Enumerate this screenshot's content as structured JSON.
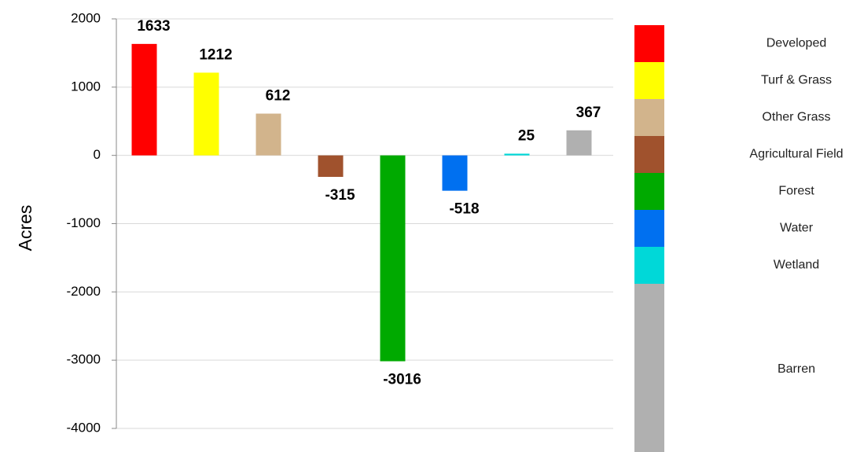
{
  "chart_data": {
    "type": "bar",
    "y_label": "Acres",
    "categories": [
      "Developed",
      "Turf & Grass",
      "Other Grass",
      "Agricultural Field",
      "Forest",
      "Water",
      "Wetland",
      "Barren"
    ],
    "values": [
      1633,
      1212,
      612,
      -315,
      -3016,
      -518,
      25,
      367
    ],
    "colors": [
      "#ff0000",
      "#ffff00",
      "#d2b48c",
      "#a0522d",
      "#00aa00",
      "#0070f0",
      "#00d8d8",
      "#b0b0b0"
    ],
    "ylim": [
      -4000,
      2000
    ],
    "yticks": [
      -4000,
      -3000,
      -2000,
      -1000,
      0,
      1000,
      2000
    ],
    "grid": true
  }
}
